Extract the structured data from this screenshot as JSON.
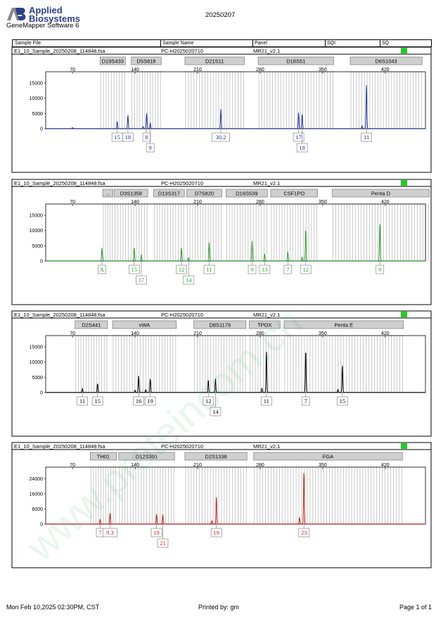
{
  "header": {
    "brand_line1": "Applied",
    "brand_line2": "Biosystems",
    "app_name": "GeneMapper Software 6",
    "run_date": "20250207",
    "columns": [
      "Sample File",
      "Sample Name",
      "Panel",
      "SQI",
      "SQ"
    ]
  },
  "watermark": "www.proteincom.cn",
  "footer": {
    "printed_at": "Mon Feb 10,2025 02:30PM, CST",
    "printed_by": "Printed by: gm",
    "page": "Page 1 of 1"
  },
  "colors": {
    "blue": "#1f2fa0",
    "green": "#2a9a2a",
    "black": "#000000",
    "red": "#c41a1a",
    "status": "#22cc22",
    "allele_bin": "#bdbdbd",
    "marker_box": "#cfcfcf"
  },
  "chart_data": [
    {
      "type": "line",
      "dye": "blue",
      "sample_file": "E1_10_Sample_20250208_114848.fsa",
      "sample_name": "PC-H2025020710",
      "panel": "MR21_v2.1",
      "x_ticks": [
        "70",
        "140",
        "210",
        "280",
        "350",
        "420"
      ],
      "y_ticks": [
        "0",
        "5000",
        "10000",
        "15000"
      ],
      "xlim": [
        40,
        465
      ],
      "ylim": [
        0,
        18000
      ],
      "markers": [
        {
          "name": "D19S433",
          "range": [
            100,
            130
          ]
        },
        {
          "name": "D5S818",
          "range": [
            135,
            170
          ]
        },
        {
          "name": "D21S11",
          "range": [
            195,
            263
          ]
        },
        {
          "name": "D18S51",
          "range": [
            277,
            363
          ]
        },
        {
          "name": "D6S1043",
          "range": [
            380,
            462
          ]
        }
      ],
      "peaks": [
        {
          "x": 120,
          "height": 2400,
          "label": "15",
          "row": 0
        },
        {
          "x": 132,
          "height": 4500,
          "label": "18",
          "row": 0
        },
        {
          "x": 153,
          "height": 5000,
          "label": "8",
          "row": 0
        },
        {
          "x": 157,
          "height": 1800,
          "label": "9",
          "row": 1
        },
        {
          "x": 236,
          "height": 6300,
          "label": "30.2",
          "row": 0
        },
        {
          "x": 323,
          "height": 5300,
          "label": "17",
          "row": 0
        },
        {
          "x": 327,
          "height": 4800,
          "label": "18",
          "row": 1
        },
        {
          "x": 399,
          "height": 14700,
          "label": "11",
          "row": 0
        }
      ],
      "minor_peaks": [
        {
          "x": 70,
          "height": 300
        },
        {
          "x": 149,
          "height": 600
        },
        {
          "x": 394,
          "height": 900
        }
      ]
    },
    {
      "type": "line",
      "dye": "green",
      "sample_file": "E1_10_Sample_20250208_114848.fsa",
      "sample_name": "PC-H2025020710",
      "panel": "MR21_v2.1",
      "x_ticks": [
        "70",
        "140",
        "210",
        "280",
        "350",
        "420"
      ],
      "y_ticks": [
        "0",
        "5000",
        "10000",
        "15000"
      ],
      "xlim": [
        40,
        465
      ],
      "ylim": [
        0,
        18000
      ],
      "markers": [
        {
          "name": "...",
          "range": [
            103,
            116
          ]
        },
        {
          "name": "D3S1358",
          "range": [
            116,
            155
          ]
        },
        {
          "name": "D13S317",
          "range": [
            160,
            196
          ]
        },
        {
          "name": "D7S820",
          "range": [
            197,
            238
          ]
        },
        {
          "name": "D16S539",
          "range": [
            241,
            289
          ]
        },
        {
          "name": "CSF1PO",
          "range": [
            291,
            345
          ]
        },
        {
          "name": "Penta D",
          "range": [
            360,
            470
          ]
        }
      ],
      "peaks": [
        {
          "x": 103,
          "height": 4300,
          "label": "X",
          "row": 0
        },
        {
          "x": 139,
          "height": 4500,
          "label": "15",
          "row": 0
        },
        {
          "x": 147,
          "height": 2000,
          "label": "17",
          "row": 1
        },
        {
          "x": 192,
          "height": 4300,
          "label": "12",
          "row": 0
        },
        {
          "x": 200,
          "height": 1000,
          "label": "14",
          "row": 1
        },
        {
          "x": 223,
          "height": 6000,
          "label": "11",
          "row": 0
        },
        {
          "x": 271,
          "height": 6500,
          "label": "9",
          "row": 0
        },
        {
          "x": 285,
          "height": 2300,
          "label": "13",
          "row": 0
        },
        {
          "x": 311,
          "height": 3100,
          "label": "7",
          "row": 0
        },
        {
          "x": 331,
          "height": 10800,
          "label": "12",
          "row": 0
        },
        {
          "x": 414,
          "height": 13000,
          "label": "9",
          "row": 0
        }
      ],
      "minor_peaks": [
        {
          "x": 327,
          "height": 1200
        }
      ]
    },
    {
      "type": "line",
      "dye": "black",
      "sample_file": "E1_10_Sample_20250208_114848.fsa",
      "sample_name": "PC-H2025020710",
      "panel": "MR21_v2.1",
      "x_ticks": [
        "70",
        "140",
        "210",
        "280",
        "350",
        "420"
      ],
      "y_ticks": [
        "0",
        "5000",
        "10000",
        "15000"
      ],
      "xlim": [
        40,
        465
      ],
      "ylim": [
        0,
        18000
      ],
      "markers": [
        {
          "name": "D2S441",
          "range": [
            72,
            110
          ]
        },
        {
          "name": "vWA",
          "range": [
            114,
            187
          ]
        },
        {
          "name": "D8S1179",
          "range": [
            205,
            265
          ]
        },
        {
          "name": "TPOX",
          "range": [
            267,
            303
          ]
        },
        {
          "name": "Penta E",
          "range": [
            306,
            441
          ]
        }
      ],
      "peaks": [
        {
          "x": 81,
          "height": 1200,
          "label": "11",
          "row": 0
        },
        {
          "x": 98,
          "height": 3000,
          "label": "15",
          "row": 0
        },
        {
          "x": 144,
          "height": 5600,
          "label": "16",
          "row": 0
        },
        {
          "x": 157,
          "height": 4600,
          "label": "19",
          "row": 0
        },
        {
          "x": 222,
          "height": 4300,
          "label": "12",
          "row": 0
        },
        {
          "x": 230,
          "height": 4500,
          "label": "14",
          "row": 1
        },
        {
          "x": 287,
          "height": 14000,
          "label": "11",
          "row": 0
        },
        {
          "x": 331,
          "height": 14500,
          "label": "7",
          "row": 0
        },
        {
          "x": 372,
          "height": 9200,
          "label": "15",
          "row": 0
        }
      ],
      "minor_peaks": [
        {
          "x": 140,
          "height": 700
        },
        {
          "x": 152,
          "height": 900
        },
        {
          "x": 282,
          "height": 1400
        },
        {
          "x": 367,
          "height": 900
        }
      ]
    },
    {
      "type": "line",
      "dye": "red",
      "sample_file": "E1_10_Sample_20250208_114848.fsa",
      "sample_name": "PC-H2025020710",
      "panel": "MR21_v2.1",
      "x_ticks": [
        "70",
        "140",
        "210",
        "280",
        "350",
        "420"
      ],
      "y_ticks": [
        "0",
        "8000",
        "16000",
        "24000"
      ],
      "xlim": [
        40,
        465
      ],
      "ylim": [
        0,
        29000
      ],
      "markers": [
        {
          "name": "TH01",
          "range": [
            89,
            120
          ]
        },
        {
          "name": "D12S391",
          "range": [
            121,
            185
          ]
        },
        {
          "name": "D2S1338",
          "range": [
            195,
            266
          ]
        },
        {
          "name": "FGA",
          "range": [
            272,
            440
          ]
        }
      ],
      "peaks": [
        {
          "x": 101,
          "height": 2600,
          "label": "7",
          "row": 0
        },
        {
          "x": 112,
          "height": 5600,
          "label": "9.3",
          "row": 0
        },
        {
          "x": 164,
          "height": 5200,
          "label": "19",
          "row": 0
        },
        {
          "x": 171,
          "height": 5000,
          "label": "21",
          "row": 1
        },
        {
          "x": 231,
          "height": 15000,
          "label": "19",
          "row": 0
        },
        {
          "x": 329,
          "height": 29000,
          "label": "23",
          "row": 0
        }
      ],
      "minor_peaks": [
        {
          "x": 226,
          "height": 1800
        },
        {
          "x": 324,
          "height": 3600
        }
      ]
    }
  ]
}
